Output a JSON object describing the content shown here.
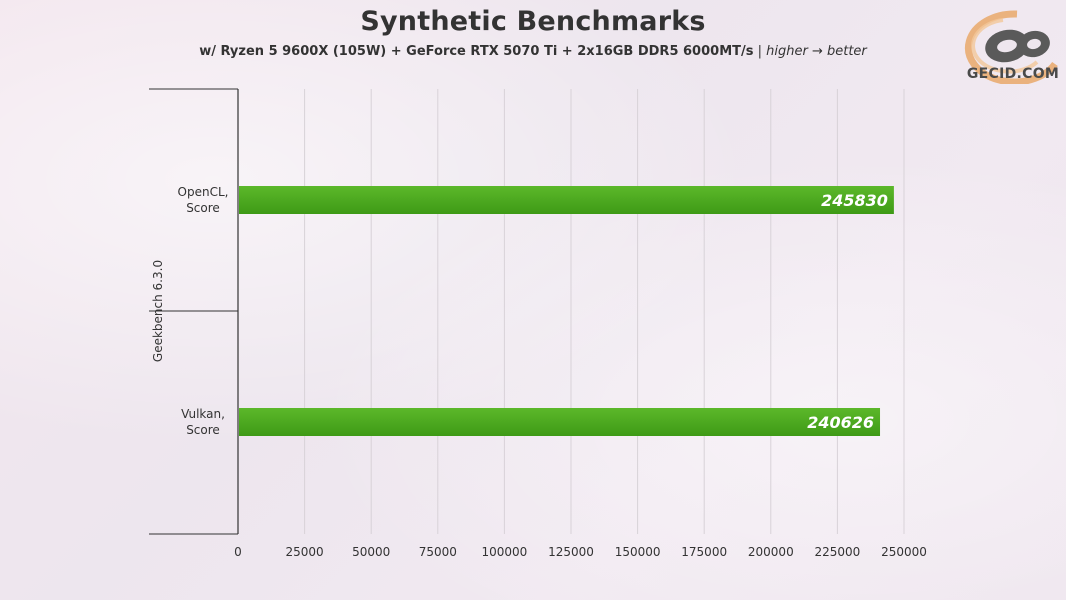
{
  "header": {
    "title": "Synthetic Benchmarks",
    "subtitle_main": "w/ Ryzen 5 9600X (105W) + GeForce RTX 5070 Ti + 2x16GB DDR5 6000MT/s",
    "subtitle_sep": " | ",
    "subtitle_note": "higher → better"
  },
  "logo": {
    "text": "GECID.COM",
    "icon": "gecid-logo-icon"
  },
  "chart_data": {
    "type": "bar",
    "orientation": "horizontal",
    "title": "Synthetic Benchmarks",
    "subtitle": "w/ Ryzen 5 9600X (105W) + GeForce RTX 5070 Ti + 2x16GB DDR5 6000MT/s | higher → better",
    "group_label": "Geekbench 6.3.0",
    "categories": [
      {
        "line1": "OpenCL,",
        "line2": "Score"
      },
      {
        "line1": "Vulkan,",
        "line2": "Score"
      }
    ],
    "values": [
      245830,
      240626
    ],
    "value_labels": [
      "245830",
      "240626"
    ],
    "xlim": [
      0,
      250000
    ],
    "xticks": [
      0,
      25000,
      50000,
      75000,
      100000,
      125000,
      150000,
      175000,
      200000,
      225000,
      250000
    ],
    "xtick_labels": [
      "0",
      "25000",
      "50000",
      "75000",
      "100000",
      "125000",
      "150000",
      "175000",
      "200000",
      "225000",
      "250000"
    ],
    "grid": true,
    "bar_color": "#5cb82a",
    "bar_color_dark": "#3e9a16",
    "grid_color": "#d8d2d8",
    "axis_color": "#333333"
  }
}
